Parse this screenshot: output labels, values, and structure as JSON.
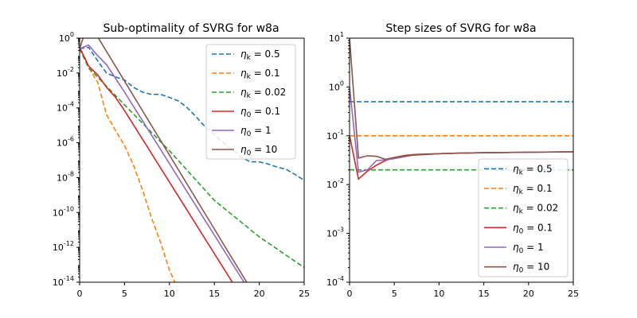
{
  "chart_data": [
    {
      "type": "line",
      "title": "Sub-optimality of SVRG for w8a",
      "xlabel": "",
      "ylabel": "",
      "xlim": [
        0,
        25
      ],
      "ylim": [
        1e-14,
        1
      ],
      "yscale": "log",
      "xticks": [
        "0",
        "5",
        "10",
        "15",
        "20",
        "25"
      ],
      "yticks": [
        {
          "base": "10",
          "exp": "0"
        },
        {
          "base": "10",
          "exp": "-2"
        },
        {
          "base": "10",
          "exp": "-4"
        },
        {
          "base": "10",
          "exp": "-6"
        },
        {
          "base": "10",
          "exp": "-8"
        },
        {
          "base": "10",
          "exp": "-10"
        },
        {
          "base": "10",
          "exp": "-12"
        },
        {
          "base": "10",
          "exp": "-14"
        }
      ],
      "legend_position": "top-right",
      "series": [
        {
          "name": "η_k = 0.5",
          "sym": "η",
          "sub": "k",
          "val": " = 0.5",
          "color": "#1f77b4",
          "dash": true,
          "x": [
            0,
            1,
            2,
            3,
            4,
            5,
            6,
            7,
            8,
            9,
            10,
            11,
            12,
            13,
            14,
            15,
            16,
            17,
            18,
            19,
            20,
            21,
            22,
            23,
            24,
            25
          ],
          "y": [
            0.25,
            0.3,
            0.05,
            0.01,
            0.006,
            0.004,
            0.0015,
            0.0008,
            0.0006,
            0.0006,
            0.0004,
            0.00025,
            0.0001,
            3e-05,
            8e-06,
            3e-06,
            1e-06,
            4e-07,
            1.5e-07,
            8e-08,
            8e-08,
            6e-08,
            4e-08,
            3e-08,
            1.5e-08,
            7e-09
          ]
        },
        {
          "name": "η_k = 0.1",
          "sym": "η",
          "sub": "k",
          "val": " = 0.1",
          "color": "#ff7f0e",
          "dash": true,
          "x": [
            0,
            1,
            2,
            3,
            4,
            5,
            6,
            7,
            8,
            9,
            10,
            10.6
          ],
          "y": [
            0.25,
            0.02,
            0.003,
            4e-05,
            5e-06,
            7e-07,
            5e-08,
            2e-09,
            5e-11,
            2e-12,
            5e-14,
            1e-14
          ]
        },
        {
          "name": "η_k = 0.02",
          "sym": "η",
          "sub": "k",
          "val": " = 0.02",
          "color": "#2ca02c",
          "dash": true,
          "x": [
            0,
            1,
            5,
            10,
            15,
            20,
            25
          ],
          "y": [
            0.25,
            0.02,
            0.00015,
            3.5e-07,
            5e-10,
            4e-12,
            7e-14
          ]
        },
        {
          "name": "η_0 = 0.1",
          "sym": "η",
          "sub": "0",
          "val": " = 0.1",
          "color": "#d62728",
          "dash": false,
          "x": [
            0,
            1,
            2,
            3,
            4,
            5,
            17
          ],
          "y": [
            0.3,
            0.025,
            0.008,
            0.0015,
            0.0004,
            7e-05,
            1e-14
          ]
        },
        {
          "name": "η_0 = 1",
          "sym": "η",
          "sub": "0",
          "val": " = 1",
          "color": "#9467bd",
          "dash": false,
          "x": [
            0,
            1,
            2,
            3,
            4,
            5,
            18.3
          ],
          "y": [
            0.25,
            0.4,
            0.1,
            0.03,
            0.005,
            0.0008,
            1e-14
          ]
        },
        {
          "name": "η_0 = 10",
          "sym": "η",
          "sub": "0",
          "val": " = 10",
          "color": "#8c564b",
          "dash": false,
          "x": [
            0,
            0.5,
            1,
            2,
            18.6
          ],
          "y": [
            0.25,
            1.5,
            5,
            1.2,
            1e-14
          ]
        }
      ]
    },
    {
      "type": "line",
      "title": "Step sizes of SVRG for w8a",
      "xlabel": "",
      "ylabel": "",
      "xlim": [
        0,
        25
      ],
      "ylim": [
        0.0001,
        10
      ],
      "yscale": "log",
      "xticks": [
        "0",
        "5",
        "10",
        "15",
        "20",
        "25"
      ],
      "yticks": [
        {
          "base": "10",
          "exp": "1"
        },
        {
          "base": "10",
          "exp": "0"
        },
        {
          "base": "10",
          "exp": "-1"
        },
        {
          "base": "10",
          "exp": "-2"
        },
        {
          "base": "10",
          "exp": "-3"
        },
        {
          "base": "10",
          "exp": "-4"
        }
      ],
      "legend_position": "lower-right",
      "series": [
        {
          "name": "η_k = 0.5",
          "sym": "η",
          "sub": "k",
          "val": " = 0.5",
          "color": "#1f77b4",
          "dash": true,
          "x": [
            0,
            25
          ],
          "y": [
            0.5,
            0.5
          ]
        },
        {
          "name": "η_k = 0.1",
          "sym": "η",
          "sub": "k",
          "val": " = 0.1",
          "color": "#ff7f0e",
          "dash": true,
          "x": [
            0,
            25
          ],
          "y": [
            0.1,
            0.1
          ]
        },
        {
          "name": "η_k = 0.02",
          "sym": "η",
          "sub": "k",
          "val": " = 0.02",
          "color": "#2ca02c",
          "dash": true,
          "x": [
            0,
            25
          ],
          "y": [
            0.02,
            0.02
          ]
        },
        {
          "name": "η_0 = 0.1",
          "sym": "η",
          "sub": "0",
          "val": " = 0.1",
          "color": "#d62728",
          "dash": false,
          "x": [
            0,
            1,
            2,
            3,
            4,
            5,
            6,
            7,
            8,
            10,
            12,
            15,
            20,
            25
          ],
          "y": [
            0.1,
            0.013,
            0.019,
            0.025,
            0.031,
            0.036,
            0.039,
            0.041,
            0.042,
            0.043,
            0.044,
            0.045,
            0.046,
            0.047
          ]
        },
        {
          "name": "η_0 = 1",
          "sym": "η",
          "sub": "0",
          "val": " = 1",
          "color": "#9467bd",
          "dash": false,
          "x": [
            0,
            1,
            2,
            3,
            4,
            5,
            6,
            7,
            8,
            10,
            12,
            15,
            20,
            25
          ],
          "y": [
            1,
            0.018,
            0.02,
            0.031,
            0.032,
            0.034,
            0.037,
            0.04,
            0.041,
            0.043,
            0.044,
            0.045,
            0.046,
            0.047
          ]
        },
        {
          "name": "η_0 = 10",
          "sym": "η",
          "sub": "0",
          "val": " = 10",
          "color": "#8c564b",
          "dash": false,
          "x": [
            0,
            1,
            2,
            3,
            4,
            5,
            6,
            7,
            8,
            10,
            12,
            15,
            20,
            25
          ],
          "y": [
            10,
            0.035,
            0.039,
            0.038,
            0.033,
            0.036,
            0.038,
            0.04,
            0.041,
            0.043,
            0.044,
            0.045,
            0.046,
            0.047
          ]
        }
      ]
    }
  ]
}
